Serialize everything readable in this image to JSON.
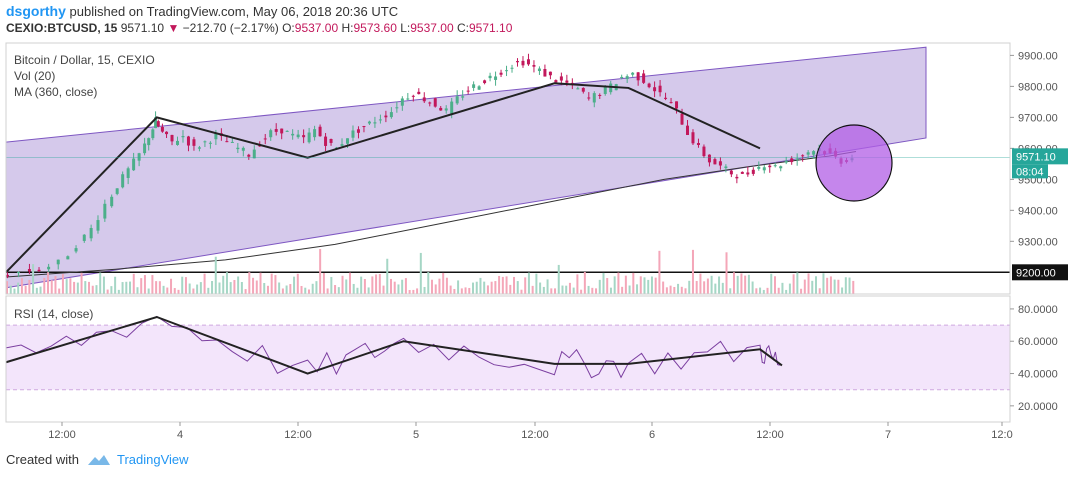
{
  "header": {
    "user": "dsgorthy",
    "published": "published on TradingView.com, May 06, 2018 20:36 UTC"
  },
  "quote": {
    "symbol": "CEXIO:BTCUSD, 15",
    "last": "9571.10",
    "change": "−212.70 (−2.17%)",
    "open_label": "O:",
    "open": "9537.00",
    "high_label": "H:",
    "high": "9573.60",
    "low_label": "L:",
    "low": "9537.00",
    "close_label": "C:",
    "close": "9571.10"
  },
  "legend": {
    "title": "Bitcoin / Dollar, 15, CEXIO",
    "vol": "Vol (20)",
    "ma": "MA (360, close)",
    "rsi": "RSI (14, close)"
  },
  "colors": {
    "up": "#4caf8a",
    "down": "#c2185b",
    "channel_fill": "#b39ddb",
    "channel_line": "#7e57c2",
    "circle_fill": "#b15de6",
    "rsi_band": "#f3e5fb",
    "rsi_line": "#7b3fa0",
    "price_line": "#26a69a"
  },
  "footer": {
    "created_with": "Created with",
    "brand": "TradingView"
  },
  "chart_data": [
    {
      "type": "candlestick",
      "title": "Bitcoin / Dollar, 15, CEXIO",
      "ylim": [
        9130,
        9940
      ],
      "y_ticks": [
        "9900.00",
        "9800.00",
        "9700.00",
        "9600.00",
        "9500.00",
        "9400.00",
        "9300.00",
        "9200.00"
      ],
      "x_ticks": [
        "12:00",
        "4",
        "12:00",
        "5",
        "12:00",
        "6",
        "12:00",
        "7",
        "12:0"
      ],
      "last_price_label": "9571.10",
      "countdown_label": "08:04",
      "horizontal_line_label": "9200.00",
      "horizontal_line": 9200,
      "price_path": [
        [
          0,
          9190
        ],
        [
          8,
          9200
        ],
        [
          15,
          9210
        ],
        [
          22,
          9230
        ],
        [
          28,
          9290
        ],
        [
          33,
          9340
        ],
        [
          38,
          9420
        ],
        [
          42,
          9480
        ],
        [
          46,
          9530
        ],
        [
          50,
          9580
        ],
        [
          53,
          9640
        ],
        [
          55,
          9690
        ],
        [
          58,
          9650
        ],
        [
          62,
          9620
        ],
        [
          66,
          9640
        ],
        [
          70,
          9600
        ],
        [
          74,
          9620
        ],
        [
          78,
          9640
        ],
        [
          82,
          9620
        ],
        [
          86,
          9600
        ],
        [
          90,
          9580
        ],
        [
          94,
          9620
        ],
        [
          98,
          9650
        ],
        [
          102,
          9660
        ],
        [
          106,
          9640
        ],
        [
          110,
          9630
        ],
        [
          114,
          9660
        ],
        [
          118,
          9620
        ],
        [
          122,
          9600
        ],
        [
          126,
          9640
        ],
        [
          130,
          9660
        ],
        [
          134,
          9680
        ],
        [
          138,
          9700
        ],
        [
          142,
          9720
        ],
        [
          146,
          9760
        ],
        [
          150,
          9780
        ],
        [
          154,
          9760
        ],
        [
          158,
          9740
        ],
        [
          162,
          9720
        ],
        [
          166,
          9760
        ],
        [
          170,
          9790
        ],
        [
          174,
          9810
        ],
        [
          178,
          9830
        ],
        [
          182,
          9850
        ],
        [
          186,
          9870
        ],
        [
          190,
          9880
        ],
        [
          194,
          9860
        ],
        [
          198,
          9840
        ],
        [
          202,
          9820
        ],
        [
          206,
          9810
        ],
        [
          210,
          9790
        ],
        [
          214,
          9760
        ],
        [
          218,
          9780
        ],
        [
          222,
          9800
        ],
        [
          226,
          9830
        ],
        [
          230,
          9840
        ],
        [
          234,
          9820
        ],
        [
          238,
          9790
        ],
        [
          242,
          9760
        ],
        [
          246,
          9720
        ],
        [
          250,
          9650
        ],
        [
          254,
          9600
        ],
        [
          258,
          9560
        ],
        [
          262,
          9540
        ],
        [
          266,
          9520
        ],
        [
          270,
          9510
        ],
        [
          274,
          9530
        ],
        [
          278,
          9550
        ],
        [
          282,
          9540
        ],
        [
          286,
          9560
        ],
        [
          290,
          9570
        ],
        [
          294,
          9590
        ],
        [
          298,
          9600
        ],
        [
          302,
          9580
        ],
        [
          306,
          9560
        ],
        [
          310,
          9571
        ]
      ],
      "ma360_path": [
        [
          0,
          9185
        ],
        [
          40,
          9210
        ],
        [
          80,
          9240
        ],
        [
          120,
          9290
        ],
        [
          160,
          9360
        ],
        [
          200,
          9430
        ],
        [
          240,
          9500
        ],
        [
          270,
          9540
        ],
        [
          300,
          9575
        ],
        [
          310,
          9590
        ]
      ],
      "channel": {
        "upper": [
          [
            0,
            9620
          ],
          [
            310,
            9920
          ]
        ],
        "lower": [
          [
            0,
            9150
          ],
          [
            310,
            9640
          ]
        ]
      },
      "zigzag": [
        [
          0,
          9200
        ],
        [
          55,
          9700
        ],
        [
          110,
          9570
        ],
        [
          200,
          9810
        ],
        [
          227,
          9795
        ],
        [
          275,
          9600
        ]
      ]
    },
    {
      "type": "bar",
      "title": "Vol (20)",
      "note": "volume histogram in lower part of price pane"
    },
    {
      "type": "line",
      "title": "RSI (14, close)",
      "ylim": [
        10,
        88
      ],
      "y_ticks": [
        "80.0000",
        "60.0000",
        "40.0000",
        "20.0000"
      ],
      "band": [
        30,
        70
      ],
      "zigzag": [
        [
          0,
          47
        ],
        [
          55,
          75
        ],
        [
          110,
          40
        ],
        [
          145,
          60
        ],
        [
          200,
          46
        ],
        [
          227,
          46
        ],
        [
          275,
          55
        ],
        [
          283,
          45
        ]
      ]
    }
  ]
}
